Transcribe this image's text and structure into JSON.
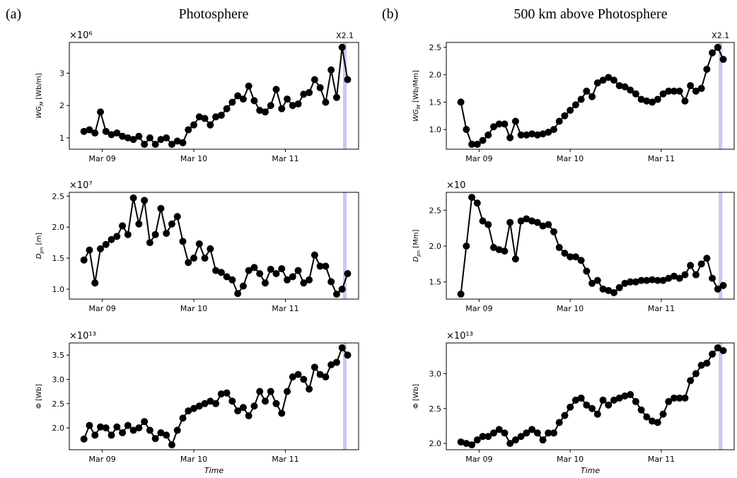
{
  "panels": [
    {
      "label": "(a)",
      "title": "Photosphere"
    },
    {
      "label": "(b)",
      "title": "500 km above Photosphere"
    }
  ],
  "chart_data": [
    {
      "type": "line",
      "color": "#000000",
      "flare_color": "#c8c8f8",
      "scale_label": "×10⁶",
      "ylabel": [
        "WG",
        "M",
        " [Wb/m]"
      ],
      "annotation": "X2.1",
      "flare_span": [
        11.63,
        11.67
      ],
      "xlim": [
        8.64,
        11.8
      ],
      "xticks": [
        {
          "value": 9,
          "label": "Mar 09"
        },
        {
          "value": 10,
          "label": "Mar 10"
        },
        {
          "value": 11,
          "label": "Mar 11"
        }
      ],
      "ylim": [
        0.65,
        3.95
      ],
      "yticks": [
        1,
        2,
        3
      ],
      "x": [
        8.8,
        8.86,
        8.92,
        8.98,
        9.04,
        9.1,
        9.16,
        9.22,
        9.28,
        9.34,
        9.4,
        9.46,
        9.52,
        9.58,
        9.64,
        9.7,
        9.76,
        9.82,
        9.88,
        9.94,
        10.0,
        10.06,
        10.12,
        10.18,
        10.24,
        10.3,
        10.36,
        10.42,
        10.48,
        10.54,
        10.6,
        10.66,
        10.72,
        10.78,
        10.84,
        10.9,
        10.96,
        11.02,
        11.08,
        11.14,
        11.2,
        11.26,
        11.32,
        11.38,
        11.44,
        11.5,
        11.56,
        11.62,
        11.68
      ],
      "values": [
        1.2,
        1.25,
        1.15,
        1.8,
        1.2,
        1.1,
        1.15,
        1.05,
        1.0,
        0.95,
        1.05,
        0.8,
        1.0,
        0.8,
        0.95,
        1.0,
        0.8,
        0.9,
        0.85,
        1.25,
        1.4,
        1.65,
        1.6,
        1.4,
        1.65,
        1.7,
        1.9,
        2.1,
        2.3,
        2.2,
        2.6,
        2.15,
        1.85,
        1.8,
        2.0,
        2.5,
        1.9,
        2.2,
        2.0,
        2.05,
        2.35,
        2.4,
        2.8,
        2.55,
        2.1,
        3.1,
        2.25,
        3.8,
        2.8
      ]
    },
    {
      "type": "line",
      "color": "#000000",
      "flare_color": "#c8c8f8",
      "scale_label": "×10⁷",
      "ylabel": [
        "D",
        "pn",
        " [m]"
      ],
      "flare_span": [
        11.63,
        11.67
      ],
      "xlim": [
        8.64,
        11.8
      ],
      "xticks": [
        {
          "value": 9,
          "label": "Mar 09"
        },
        {
          "value": 10,
          "label": "Mar 10"
        },
        {
          "value": 11,
          "label": "Mar 11"
        }
      ],
      "ylim": [
        0.84,
        2.56
      ],
      "yticks": [
        {
          "value": 1.0,
          "label": "1.0"
        },
        {
          "value": 1.5,
          "label": "1.5"
        },
        {
          "value": 2.0,
          "label": "2.0"
        },
        {
          "value": 2.5,
          "label": "2.5"
        }
      ],
      "x": [
        8.8,
        8.86,
        8.92,
        8.98,
        9.04,
        9.1,
        9.16,
        9.22,
        9.28,
        9.34,
        9.4,
        9.46,
        9.52,
        9.58,
        9.64,
        9.7,
        9.76,
        9.82,
        9.88,
        9.94,
        10.0,
        10.06,
        10.12,
        10.18,
        10.24,
        10.3,
        10.36,
        10.42,
        10.48,
        10.54,
        10.6,
        10.66,
        10.72,
        10.78,
        10.84,
        10.9,
        10.96,
        11.02,
        11.08,
        11.14,
        11.2,
        11.26,
        11.32,
        11.38,
        11.44,
        11.5,
        11.56,
        11.62,
        11.68
      ],
      "values": [
        1.47,
        1.63,
        1.1,
        1.65,
        1.72,
        1.8,
        1.85,
        2.02,
        1.88,
        2.47,
        2.05,
        2.43,
        1.75,
        1.88,
        2.3,
        1.9,
        2.05,
        2.17,
        1.77,
        1.43,
        1.5,
        1.73,
        1.5,
        1.65,
        1.3,
        1.27,
        1.2,
        1.15,
        0.93,
        1.05,
        1.3,
        1.35,
        1.25,
        1.1,
        1.32,
        1.25,
        1.33,
        1.15,
        1.2,
        1.3,
        1.1,
        1.15,
        1.55,
        1.37,
        1.37,
        1.12,
        0.92,
        1.0,
        1.25
      ]
    },
    {
      "type": "line",
      "color": "#000000",
      "flare_color": "#c8c8f8",
      "scale_label": "×10¹³",
      "ylabel": [
        "Φ [Wb]"
      ],
      "xlabel": "Time",
      "flare_span": [
        11.63,
        11.67
      ],
      "xlim": [
        8.64,
        11.8
      ],
      "xticks": [
        {
          "value": 9,
          "label": "Mar 09"
        },
        {
          "value": 10,
          "label": "Mar 10"
        },
        {
          "value": 11,
          "label": "Mar 11"
        }
      ],
      "ylim": [
        1.55,
        3.75
      ],
      "yticks": [
        {
          "value": 2.0,
          "label": "2.0"
        },
        {
          "value": 2.5,
          "label": "2.5"
        },
        {
          "value": 3.0,
          "label": "3.0"
        },
        {
          "value": 3.5,
          "label": "3.5"
        }
      ],
      "x": [
        8.8,
        8.86,
        8.92,
        8.98,
        9.04,
        9.1,
        9.16,
        9.22,
        9.28,
        9.34,
        9.4,
        9.46,
        9.52,
        9.58,
        9.64,
        9.7,
        9.76,
        9.82,
        9.88,
        9.94,
        10.0,
        10.06,
        10.12,
        10.18,
        10.24,
        10.3,
        10.36,
        10.42,
        10.48,
        10.54,
        10.6,
        10.66,
        10.72,
        10.78,
        10.84,
        10.9,
        10.96,
        11.02,
        11.08,
        11.14,
        11.2,
        11.26,
        11.32,
        11.38,
        11.44,
        11.5,
        11.56,
        11.62,
        11.68
      ],
      "values": [
        1.77,
        2.05,
        1.85,
        2.02,
        2.0,
        1.85,
        2.02,
        1.9,
        2.05,
        1.95,
        2.0,
        2.13,
        1.95,
        1.78,
        1.9,
        1.85,
        1.65,
        1.95,
        2.2,
        2.35,
        2.4,
        2.45,
        2.5,
        2.55,
        2.5,
        2.7,
        2.72,
        2.55,
        2.35,
        2.42,
        2.25,
        2.45,
        2.75,
        2.55,
        2.75,
        2.5,
        2.3,
        2.75,
        3.05,
        3.1,
        3.0,
        2.8,
        3.25,
        3.1,
        3.05,
        3.3,
        3.35,
        3.65,
        3.5
      ]
    },
    {
      "type": "line",
      "color": "#000000",
      "flare_color": "#c8c8f8",
      "ylabel": [
        "WG",
        "M",
        " [Wb/Mm]"
      ],
      "annotation": "X2.1",
      "flare_span": [
        11.63,
        11.67
      ],
      "xlim": [
        8.64,
        11.8
      ],
      "xticks": [
        {
          "value": 9,
          "label": "Mar 09"
        },
        {
          "value": 10,
          "label": "Mar 10"
        },
        {
          "value": 11,
          "label": "Mar 11"
        }
      ],
      "ylim": [
        0.64,
        2.59
      ],
      "yticks": [
        {
          "value": 1.0,
          "label": "1.0"
        },
        {
          "value": 1.5,
          "label": "1.5"
        },
        {
          "value": 2.0,
          "label": "2.0"
        },
        {
          "value": 2.5,
          "label": "2.5"
        }
      ],
      "x": [
        8.8,
        8.86,
        8.92,
        8.98,
        9.04,
        9.1,
        9.16,
        9.22,
        9.28,
        9.34,
        9.4,
        9.46,
        9.52,
        9.58,
        9.64,
        9.7,
        9.76,
        9.82,
        9.88,
        9.94,
        10.0,
        10.06,
        10.12,
        10.18,
        10.24,
        10.3,
        10.36,
        10.42,
        10.48,
        10.54,
        10.6,
        10.66,
        10.72,
        10.78,
        10.84,
        10.9,
        10.96,
        11.02,
        11.08,
        11.14,
        11.2,
        11.26,
        11.32,
        11.38,
        11.44,
        11.5,
        11.56,
        11.62,
        11.68
      ],
      "values": [
        1.5,
        1.0,
        0.73,
        0.73,
        0.8,
        0.9,
        1.05,
        1.1,
        1.1,
        0.85,
        1.15,
        0.9,
        0.9,
        0.92,
        0.9,
        0.92,
        0.95,
        1.0,
        1.15,
        1.25,
        1.35,
        1.45,
        1.55,
        1.7,
        1.6,
        1.85,
        1.9,
        1.95,
        1.9,
        1.8,
        1.78,
        1.72,
        1.65,
        1.55,
        1.52,
        1.5,
        1.55,
        1.65,
        1.7,
        1.7,
        1.7,
        1.52,
        1.8,
        1.7,
        1.75,
        2.1,
        2.4,
        2.5,
        2.28
      ]
    },
    {
      "type": "line",
      "color": "#000000",
      "flare_color": "#c8c8f8",
      "scale_label": "×10",
      "ylabel": [
        "D",
        "pn",
        " [Mm]"
      ],
      "flare_span": [
        11.63,
        11.67
      ],
      "xlim": [
        8.64,
        11.8
      ],
      "xticks": [
        {
          "value": 9,
          "label": "Mar 09"
        },
        {
          "value": 10,
          "label": "Mar 10"
        },
        {
          "value": 11,
          "label": "Mar 11"
        }
      ],
      "ylim": [
        1.26,
        2.75
      ],
      "yticks": [
        {
          "value": 1.5,
          "label": "1.5"
        },
        {
          "value": 2.0,
          "label": "2.0"
        },
        {
          "value": 2.5,
          "label": "2.5"
        }
      ],
      "x": [
        8.8,
        8.86,
        8.92,
        8.98,
        9.04,
        9.1,
        9.16,
        9.22,
        9.28,
        9.34,
        9.4,
        9.46,
        9.52,
        9.58,
        9.64,
        9.7,
        9.76,
        9.82,
        9.88,
        9.94,
        10.0,
        10.06,
        10.12,
        10.18,
        10.24,
        10.3,
        10.36,
        10.42,
        10.48,
        10.54,
        10.6,
        10.66,
        10.72,
        10.78,
        10.84,
        10.9,
        10.96,
        11.02,
        11.08,
        11.14,
        11.2,
        11.26,
        11.32,
        11.38,
        11.44,
        11.5,
        11.56,
        11.62,
        11.68
      ],
      "values": [
        1.33,
        2.0,
        2.68,
        2.6,
        2.35,
        2.3,
        1.98,
        1.95,
        1.93,
        2.33,
        1.82,
        2.35,
        2.38,
        2.35,
        2.33,
        2.28,
        2.3,
        2.2,
        1.98,
        1.9,
        1.85,
        1.85,
        1.8,
        1.65,
        1.48,
        1.52,
        1.4,
        1.38,
        1.35,
        1.42,
        1.48,
        1.5,
        1.5,
        1.52,
        1.52,
        1.53,
        1.52,
        1.52,
        1.55,
        1.58,
        1.55,
        1.6,
        1.73,
        1.6,
        1.75,
        1.83,
        1.55,
        1.4,
        1.45
      ]
    },
    {
      "type": "line",
      "color": "#000000",
      "flare_color": "#c8c8f8",
      "scale_label": "×10¹³",
      "ylabel": [
        "Φ [Wb]"
      ],
      "xlabel": "Time",
      "flare_span": [
        11.63,
        11.67
      ],
      "xlim": [
        8.64,
        11.8
      ],
      "xticks": [
        {
          "value": 9,
          "label": "Mar 09"
        },
        {
          "value": 10,
          "label": "Mar 10"
        },
        {
          "value": 11,
          "label": "Mar 11"
        }
      ],
      "ylim": [
        1.91,
        3.44
      ],
      "yticks": [
        {
          "value": 2.0,
          "label": "2.0"
        },
        {
          "value": 2.5,
          "label": "2.5"
        },
        {
          "value": 3.0,
          "label": "3.0"
        }
      ],
      "x": [
        8.8,
        8.86,
        8.92,
        8.98,
        9.04,
        9.1,
        9.16,
        9.22,
        9.28,
        9.34,
        9.4,
        9.46,
        9.52,
        9.58,
        9.64,
        9.7,
        9.76,
        9.82,
        9.88,
        9.94,
        10.0,
        10.06,
        10.12,
        10.18,
        10.24,
        10.3,
        10.36,
        10.42,
        10.48,
        10.54,
        10.6,
        10.66,
        10.72,
        10.78,
        10.84,
        10.9,
        10.96,
        11.02,
        11.08,
        11.14,
        11.2,
        11.26,
        11.32,
        11.38,
        11.44,
        11.5,
        11.56,
        11.62,
        11.68
      ],
      "values": [
        2.02,
        2.0,
        1.98,
        2.05,
        2.1,
        2.1,
        2.15,
        2.2,
        2.15,
        2.0,
        2.05,
        2.1,
        2.15,
        2.2,
        2.15,
        2.05,
        2.15,
        2.15,
        2.3,
        2.4,
        2.52,
        2.62,
        2.65,
        2.55,
        2.5,
        2.42,
        2.62,
        2.55,
        2.62,
        2.65,
        2.68,
        2.7,
        2.6,
        2.48,
        2.38,
        2.32,
        2.3,
        2.42,
        2.6,
        2.65,
        2.65,
        2.65,
        2.9,
        3.0,
        3.12,
        3.15,
        3.28,
        3.37,
        3.33
      ]
    }
  ]
}
